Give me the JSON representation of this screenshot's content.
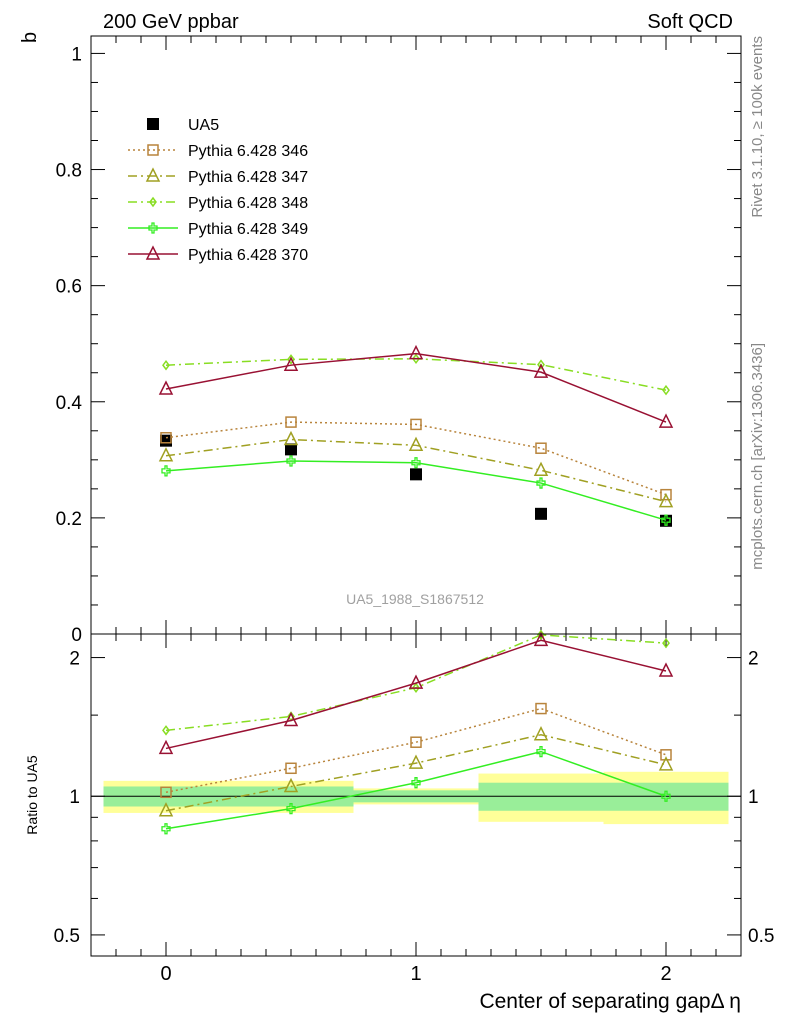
{
  "header": {
    "left": "200 GeV ppbar",
    "right": "Soft QCD"
  },
  "side": {
    "rivet": "Rivet 3.1.10, ≥ 100k events",
    "mcplots": "mcplots.cern.ch [arXiv:1306.3436]"
  },
  "watermark": "UA5_1988_S1867512",
  "chart_data": [
    {
      "type": "line",
      "panel": "main",
      "ylabel": "b",
      "xlim": [
        -0.3,
        2.3
      ],
      "ylim": [
        0,
        1.03
      ],
      "x_ticks": [
        "0",
        "1",
        "2"
      ],
      "y_ticks": [
        "0",
        "0.2",
        "0.4",
        "0.6",
        "0.8",
        "1"
      ],
      "legend_placement": "top-left",
      "x": [
        0,
        0.5,
        1,
        1.5,
        2
      ],
      "series": [
        {
          "name": "UA5",
          "color": "#000000",
          "marker": "filled-square",
          "line": "none",
          "values": [
            0.333,
            0.318,
            0.275,
            0.207,
            0.195
          ]
        },
        {
          "name": "Pythia 6.428 346",
          "color": "#b8843c",
          "marker": "open-square",
          "line": "dotted",
          "values": [
            0.338,
            0.365,
            0.361,
            0.32,
            0.24
          ]
        },
        {
          "name": "Pythia 6.428 347",
          "color": "#a0a022",
          "marker": "open-triangle",
          "line": "dashdot",
          "values": [
            0.307,
            0.335,
            0.325,
            0.282,
            0.228
          ]
        },
        {
          "name": "Pythia 6.428 348",
          "color": "#88dd22",
          "marker": "open-diamond",
          "line": "dashdot",
          "values": [
            0.463,
            0.473,
            0.474,
            0.464,
            0.42
          ]
        },
        {
          "name": "Pythia 6.428 349",
          "color": "#33ee22",
          "marker": "open-cross",
          "line": "solid",
          "values": [
            0.281,
            0.298,
            0.295,
            0.26,
            0.196
          ]
        },
        {
          "name": "Pythia 6.428 370",
          "color": "#991133",
          "marker": "open-triangle",
          "line": "solid",
          "values": [
            0.422,
            0.463,
            0.483,
            0.451,
            0.365
          ]
        }
      ]
    },
    {
      "type": "line",
      "panel": "ratio",
      "xlabel": "Center of separating gapΔ η",
      "ylabel": "Ratio to UA5",
      "ylim": [
        0.45,
        2.25
      ],
      "y_scale": "log",
      "x_ticks": [
        "0",
        "1",
        "2"
      ],
      "y_ticks": [
        "0.5",
        "1",
        "2"
      ],
      "reference_line": 1,
      "bands": [
        {
          "x_from": -0.25,
          "x_to": 0.75,
          "stat": [
            0.95,
            1.05
          ],
          "total": [
            0.92,
            1.08
          ]
        },
        {
          "x_from": 0.75,
          "x_to": 1.25,
          "stat": [
            0.97,
            1.03
          ],
          "total": [
            0.96,
            1.04
          ]
        },
        {
          "x_from": 1.25,
          "x_to": 1.75,
          "stat": [
            0.93,
            1.07
          ],
          "total": [
            0.88,
            1.12
          ]
        },
        {
          "x_from": 1.75,
          "x_to": 2.25,
          "stat": [
            0.93,
            1.07
          ],
          "total": [
            0.87,
            1.13
          ]
        }
      ],
      "x": [
        0,
        0.5,
        1,
        1.5,
        2
      ],
      "series": [
        {
          "name": "Pythia 6.428 346",
          "values": [
            1.02,
            1.15,
            1.31,
            1.55,
            1.23
          ]
        },
        {
          "name": "Pythia 6.428 347",
          "values": [
            0.93,
            1.05,
            1.18,
            1.36,
            1.17
          ]
        },
        {
          "name": "Pythia 6.428 348",
          "values": [
            1.39,
            1.49,
            1.72,
            2.24,
            2.15
          ]
        },
        {
          "name": "Pythia 6.428 349",
          "values": [
            0.85,
            0.94,
            1.07,
            1.25,
            1.0
          ]
        },
        {
          "name": "Pythia 6.428 370",
          "values": [
            1.27,
            1.46,
            1.76,
            2.18,
            1.87
          ]
        }
      ]
    }
  ]
}
